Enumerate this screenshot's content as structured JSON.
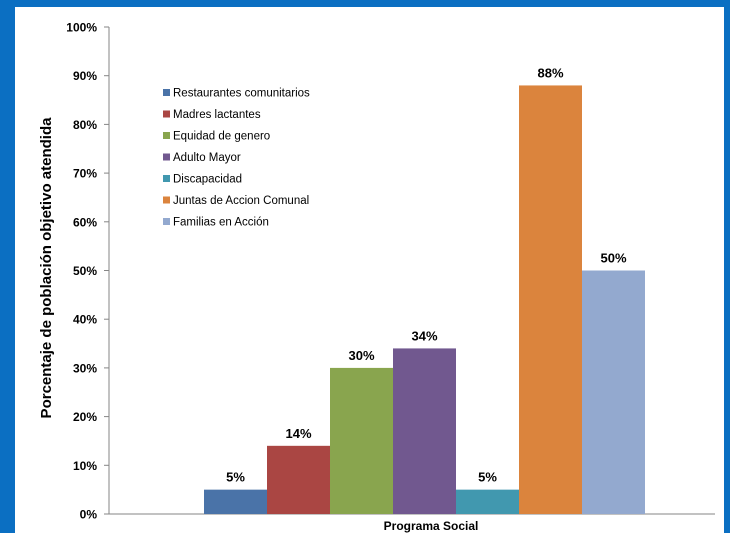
{
  "chart_data": {
    "type": "bar",
    "title": "",
    "xlabel": "Programa Social",
    "ylabel": "Porcentaje de población objetivo atendida",
    "ylim": [
      0,
      100
    ],
    "y_ticks": [
      "0%",
      "10%",
      "20%",
      "30%",
      "40%",
      "50%",
      "60%",
      "70%",
      "80%",
      "90%",
      "100%"
    ],
    "grid": false,
    "legend_position": "top-left",
    "series": [
      {
        "name": "Restaurantes comunitarios",
        "value": 5,
        "label": "5%",
        "color": "#4a73a8"
      },
      {
        "name": "Madres lactantes",
        "value": 14,
        "label": "14%",
        "color": "#aa4643"
      },
      {
        "name": "Equidad de genero",
        "value": 30,
        "label": "30%",
        "color": "#89a54e"
      },
      {
        "name": "Adulto Mayor",
        "value": 34,
        "label": "34%",
        "color": "#71588f"
      },
      {
        "name": "Discapacidad",
        "value": 5,
        "label": "5%",
        "color": "#4198af"
      },
      {
        "name": "Juntas de Accion Comunal",
        "value": 88,
        "label": "88%",
        "color": "#db843d"
      },
      {
        "name": "Familias en Acción",
        "value": 50,
        "label": "50%",
        "color": "#93a9cf"
      }
    ]
  },
  "colors": {
    "frame_border": "#0b6fc2",
    "axis": "#868686",
    "text": "#000000"
  }
}
